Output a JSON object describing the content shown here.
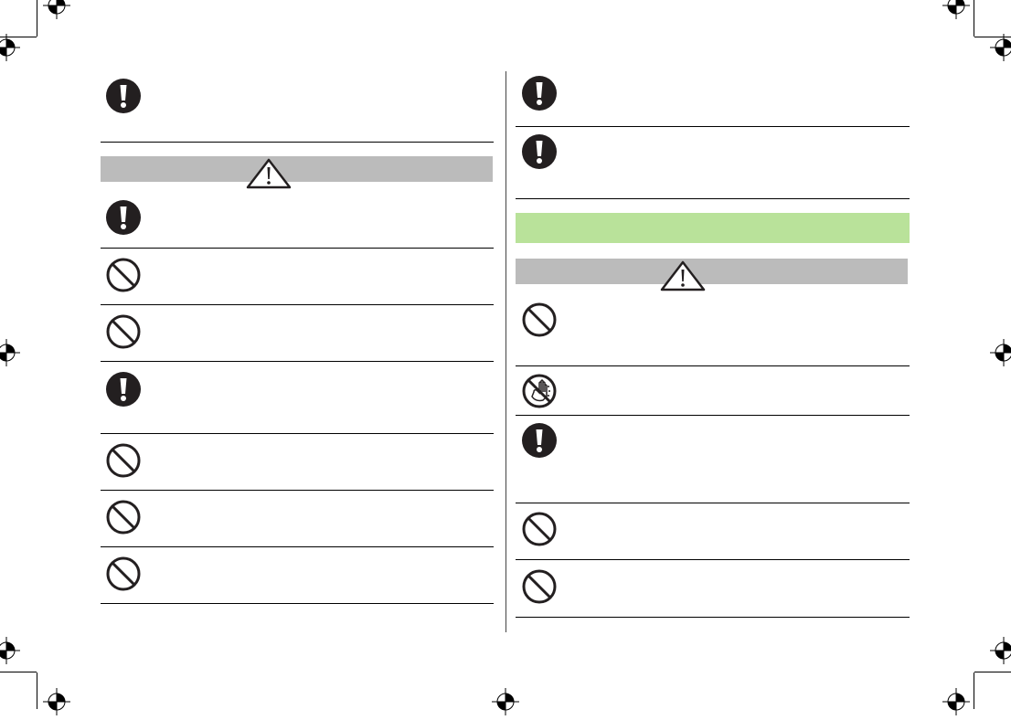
{
  "colors": {
    "caution_bar": "#bbbbbb",
    "section_bar": "#b9e29a",
    "icon": "#231f20"
  },
  "left_column": {
    "top_row": {
      "icon": "mandatory-action-icon"
    },
    "caution_header": {
      "icon": "warning-triangle-icon"
    },
    "rows": [
      {
        "icon": "mandatory-action-icon"
      },
      {
        "icon": "prohibited-icon"
      },
      {
        "icon": "prohibited-icon"
      },
      {
        "icon": "mandatory-action-icon"
      },
      {
        "icon": "prohibited-icon"
      },
      {
        "icon": "prohibited-icon"
      },
      {
        "icon": "prohibited-icon"
      }
    ]
  },
  "right_column": {
    "top_rows": [
      {
        "icon": "mandatory-action-icon"
      },
      {
        "icon": "mandatory-action-icon"
      }
    ],
    "section_header": {},
    "caution_header": {
      "icon": "warning-triangle-icon"
    },
    "rows": [
      {
        "icon": "prohibited-icon"
      },
      {
        "icon": "no-wet-hands-icon"
      },
      {
        "icon": "mandatory-action-icon"
      },
      {
        "icon": "prohibited-icon"
      },
      {
        "icon": "prohibited-icon"
      }
    ]
  }
}
